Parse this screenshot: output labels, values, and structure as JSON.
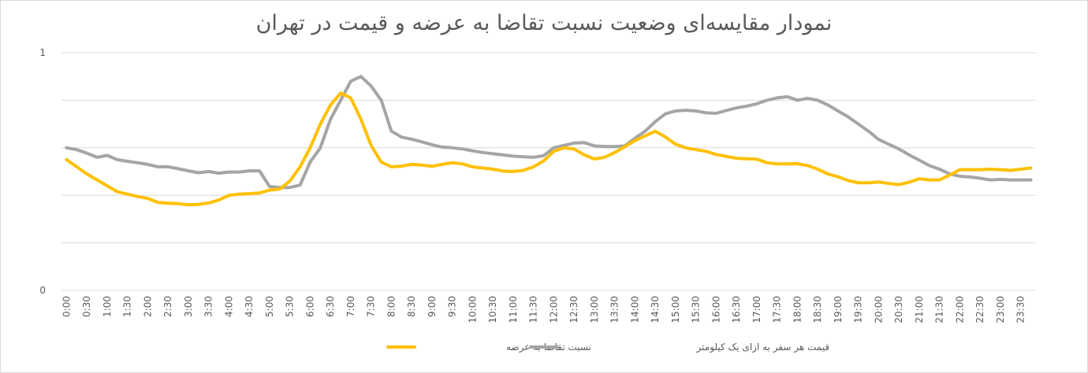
{
  "chart_data": {
    "type": "line",
    "title": "نمودار مقایسه‌ای وضعیت نسبت تقاضا به عرضه و قیمت در تهران",
    "xlabel": "",
    "ylabel": "",
    "ylim": [
      0,
      1
    ],
    "y_ticks": [
      "0",
      "1"
    ],
    "grid": true,
    "legend_position": "bottom",
    "x": [
      "0:00",
      "0:15",
      "0:30",
      "0:45",
      "1:00",
      "1:15",
      "1:30",
      "1:45",
      "2:00",
      "2:15",
      "2:30",
      "2:45",
      "3:00",
      "3:15",
      "3:30",
      "3:45",
      "4:00",
      "4:15",
      "4:30",
      "4:45",
      "5:00",
      "5:15",
      "5:30",
      "5:45",
      "6:00",
      "6:15",
      "6:30",
      "6:45",
      "7:00",
      "7:15",
      "7:30",
      "7:45",
      "8:00",
      "8:15",
      "8:30",
      "8:45",
      "9:00",
      "9:15",
      "9:30",
      "9:45",
      "10:00",
      "10:15",
      "10:30",
      "10:45",
      "11:00",
      "11:15",
      "11:30",
      "11:45",
      "12:00",
      "12:15",
      "12:30",
      "12:45",
      "13:00",
      "13:15",
      "13:30",
      "13:45",
      "14:00",
      "14:15",
      "14:30",
      "14:45",
      "15:00",
      "15:15",
      "15:30",
      "15:45",
      "16:00",
      "16:15",
      "16:30",
      "16:45",
      "17:00",
      "17:15",
      "17:30",
      "17:45",
      "18:00",
      "18:15",
      "18:30",
      "18:45",
      "19:00",
      "19:15",
      "19:30",
      "19:45",
      "20:00",
      "20:15",
      "20:30",
      "20:45",
      "21:00",
      "21:15",
      "21:30",
      "21:45",
      "22:00",
      "22:15",
      "22:30",
      "22:45",
      "23:00",
      "23:15",
      "23:30",
      "23:45"
    ],
    "x_tick_labels": [
      "0:00",
      "0:30",
      "1:00",
      "1:30",
      "2:00",
      "2:30",
      "3:00",
      "3:30",
      "4:00",
      "4:30",
      "5:00",
      "5:30",
      "6:00",
      "6:30",
      "7:00",
      "7:30",
      "8:00",
      "8:30",
      "9:00",
      "9:30",
      "10:00",
      "10:30",
      "11:00",
      "11:30",
      "12:00",
      "12:30",
      "13:00",
      "13:30",
      "14:00",
      "14:30",
      "15:00",
      "15:30",
      "16:00",
      "16:30",
      "17:00",
      "17:30",
      "18:00",
      "18:30",
      "19:00",
      "19:30",
      "20:00",
      "20:30",
      "21:00",
      "21:30",
      "22:00",
      "22:30",
      "23:00",
      "23:30"
    ],
    "series": [
      {
        "name": "نسبت تقاضا به عرضه",
        "color": "#ffc000",
        "values": [
          0.55,
          0.52,
          0.49,
          0.465,
          0.44,
          0.415,
          0.405,
          0.395,
          0.387,
          0.37,
          0.367,
          0.365,
          0.36,
          0.362,
          0.368,
          0.38,
          0.4,
          0.405,
          0.407,
          0.41,
          0.422,
          0.426,
          0.46,
          0.52,
          0.6,
          0.7,
          0.78,
          0.83,
          0.81,
          0.72,
          0.61,
          0.54,
          0.52,
          0.523,
          0.53,
          0.527,
          0.522,
          0.53,
          0.537,
          0.532,
          0.52,
          0.515,
          0.51,
          0.502,
          0.5,
          0.505,
          0.52,
          0.545,
          0.585,
          0.6,
          0.595,
          0.57,
          0.553,
          0.56,
          0.58,
          0.605,
          0.63,
          0.65,
          0.67,
          0.645,
          0.615,
          0.6,
          0.592,
          0.585,
          0.572,
          0.564,
          0.556,
          0.554,
          0.552,
          0.537,
          0.532,
          0.532,
          0.533,
          0.525,
          0.51,
          0.49,
          0.478,
          0.462,
          0.453,
          0.453,
          0.456,
          0.45,
          0.445,
          0.455,
          0.47,
          0.465,
          0.465,
          0.485,
          0.508,
          0.508,
          0.508,
          0.51,
          0.508,
          0.505,
          0.51,
          0.515
        ]
      },
      {
        "name": "قیمت هر سفر به ازای یک کیلومتر",
        "color": "#a5a5a5",
        "values": [
          0.6,
          0.592,
          0.577,
          0.56,
          0.568,
          0.55,
          0.543,
          0.537,
          0.53,
          0.52,
          0.52,
          0.512,
          0.503,
          0.495,
          0.5,
          0.493,
          0.498,
          0.498,
          0.503,
          0.503,
          0.437,
          0.433,
          0.433,
          0.443,
          0.54,
          0.6,
          0.72,
          0.8,
          0.88,
          0.9,
          0.86,
          0.8,
          0.67,
          0.645,
          0.636,
          0.625,
          0.613,
          0.603,
          0.6,
          0.595,
          0.587,
          0.58,
          0.575,
          0.57,
          0.565,
          0.562,
          0.56,
          0.567,
          0.6,
          0.61,
          0.62,
          0.622,
          0.608,
          0.605,
          0.605,
          0.608,
          0.64,
          0.67,
          0.71,
          0.743,
          0.755,
          0.758,
          0.755,
          0.747,
          0.745,
          0.757,
          0.768,
          0.775,
          0.785,
          0.8,
          0.81,
          0.815,
          0.8,
          0.808,
          0.8,
          0.78,
          0.755,
          0.73,
          0.7,
          0.67,
          0.635,
          0.615,
          0.595,
          0.57,
          0.548,
          0.525,
          0.51,
          0.49,
          0.48,
          0.477,
          0.472,
          0.465,
          0.467,
          0.465,
          0.465,
          0.465
        ]
      }
    ]
  }
}
